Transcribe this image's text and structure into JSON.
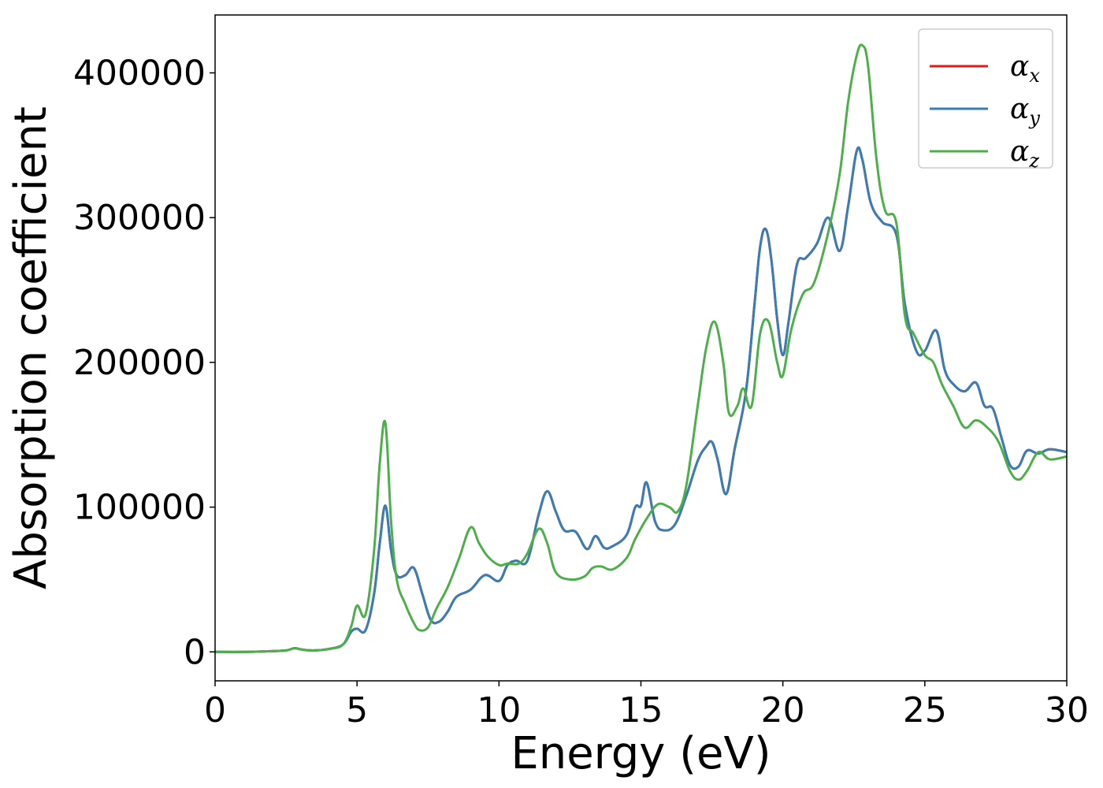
{
  "chart_data": {
    "type": "line",
    "xlabel": "Energy (eV)",
    "ylabel": "Absorption coefficient",
    "xlim": [
      0,
      30
    ],
    "ylim": [
      -20000,
      440000
    ],
    "xticks": [
      0,
      5,
      10,
      15,
      20,
      25,
      30
    ],
    "yticks": [
      0,
      100000,
      200000,
      300000,
      400000
    ],
    "grid": false,
    "legend_position": "top-right",
    "series": [
      {
        "name": "α",
        "subscript": "x",
        "color": "#e41a1c",
        "x": [
          0,
          1,
          2,
          2.5,
          2.8,
          3.1,
          3.5,
          4,
          4.5,
          4.8,
          5,
          5.3,
          5.6,
          5.8,
          6,
          6.2,
          6.4,
          6.7,
          7,
          7.3,
          7.6,
          7.9,
          8.2,
          8.5,
          9,
          9.5,
          10,
          10.3,
          10.6,
          11,
          11.4,
          11.7,
          12,
          12.3,
          12.7,
          13.1,
          13.4,
          13.7,
          14,
          14.5,
          14.8,
          15,
          15.2,
          15.5,
          15.8,
          16.2,
          16.6,
          17,
          17.3,
          17.5,
          17.7,
          18,
          18.3,
          18.7,
          19,
          19.2,
          19.4,
          19.6,
          19.8,
          20,
          20.2,
          20.5,
          20.8,
          21.2,
          21.6,
          22,
          22.3,
          22.6,
          22.8,
          23.1,
          23.5,
          24,
          24.3,
          24.7,
          25,
          25.4,
          25.7,
          26,
          26.4,
          26.8,
          27.1,
          27.4,
          27.7,
          28,
          28.3,
          28.6,
          29,
          29.4,
          30
        ],
        "values": [
          0,
          0,
          500,
          1000,
          2500,
          1500,
          1000,
          2000,
          5000,
          14000,
          16000,
          15000,
          40000,
          75000,
          101000,
          70000,
          53000,
          53000,
          58000,
          40000,
          22000,
          21000,
          28000,
          38000,
          43000,
          53000,
          49000,
          60000,
          63000,
          63000,
          95000,
          111000,
          97000,
          84000,
          83000,
          71000,
          80000,
          72000,
          73000,
          81000,
          100000,
          101000,
          117000,
          90000,
          84000,
          88000,
          108000,
          132000,
          142000,
          145000,
          133000,
          109000,
          140000,
          180000,
          240000,
          280000,
          292000,
          270000,
          230000,
          205000,
          228000,
          268000,
          272000,
          282000,
          300000,
          277000,
          308000,
          346000,
          340000,
          310000,
          297000,
          288000,
          240000,
          208000,
          208000,
          222000,
          195000,
          185000,
          180000,
          186000,
          170000,
          168000,
          148000,
          129000,
          128000,
          139000,
          137000,
          140000,
          138000
        ]
      },
      {
        "name": "α",
        "subscript": "y",
        "color": "#377eb8",
        "x": [
          0,
          1,
          2,
          2.5,
          2.8,
          3.1,
          3.5,
          4,
          4.5,
          4.8,
          5,
          5.3,
          5.6,
          5.8,
          6,
          6.2,
          6.4,
          6.7,
          7,
          7.3,
          7.6,
          7.9,
          8.2,
          8.5,
          9,
          9.5,
          10,
          10.3,
          10.6,
          11,
          11.4,
          11.7,
          12,
          12.3,
          12.7,
          13.1,
          13.4,
          13.7,
          14,
          14.5,
          14.8,
          15,
          15.2,
          15.5,
          15.8,
          16.2,
          16.6,
          17,
          17.3,
          17.5,
          17.7,
          18,
          18.3,
          18.7,
          19,
          19.2,
          19.4,
          19.6,
          19.8,
          20,
          20.2,
          20.5,
          20.8,
          21.2,
          21.6,
          22,
          22.3,
          22.6,
          22.8,
          23.1,
          23.5,
          24,
          24.3,
          24.7,
          25,
          25.4,
          25.7,
          26,
          26.4,
          26.8,
          27.1,
          27.4,
          27.7,
          28,
          28.3,
          28.6,
          29,
          29.4,
          30
        ],
        "values": [
          0,
          0,
          500,
          1000,
          2500,
          1500,
          1000,
          2000,
          5000,
          14000,
          16000,
          15000,
          40000,
          75000,
          101000,
          70000,
          53000,
          53000,
          58000,
          40000,
          22000,
          21000,
          28000,
          38000,
          43000,
          53000,
          49000,
          60000,
          63000,
          63000,
          95000,
          111000,
          97000,
          84000,
          83000,
          71000,
          80000,
          72000,
          73000,
          81000,
          100000,
          101000,
          117000,
          90000,
          84000,
          88000,
          108000,
          132000,
          142000,
          145000,
          133000,
          109000,
          140000,
          180000,
          240000,
          280000,
          292000,
          270000,
          230000,
          205000,
          228000,
          268000,
          272000,
          282000,
          300000,
          277000,
          308000,
          346000,
          340000,
          310000,
          297000,
          288000,
          240000,
          208000,
          208000,
          222000,
          195000,
          185000,
          180000,
          186000,
          170000,
          168000,
          148000,
          129000,
          128000,
          139000,
          137000,
          140000,
          138000
        ]
      },
      {
        "name": "α",
        "subscript": "z",
        "color": "#4daf4a",
        "x": [
          0,
          1,
          2,
          2.5,
          2.8,
          3.1,
          3.5,
          4,
          4.5,
          4.8,
          5,
          5.3,
          5.6,
          5.8,
          6,
          6.2,
          6.4,
          6.7,
          7,
          7.2,
          7.5,
          7.8,
          8.2,
          8.6,
          9,
          9.3,
          9.6,
          10,
          10.3,
          10.7,
          11,
          11.4,
          11.7,
          12,
          12.5,
          13,
          13.3,
          13.6,
          14,
          14.5,
          14.8,
          15.2,
          15.6,
          16,
          16.3,
          16.6,
          17,
          17.3,
          17.6,
          17.9,
          18.1,
          18.4,
          18.6,
          18.9,
          19.2,
          19.5,
          19.8,
          20,
          20.3,
          20.7,
          21.1,
          21.6,
          22,
          22.3,
          22.6,
          22.8,
          23,
          23.3,
          23.6,
          24,
          24.3,
          24.6,
          25,
          25.3,
          25.6,
          26,
          26.4,
          26.8,
          27.2,
          27.6,
          28,
          28.3,
          28.6,
          29,
          29.4,
          30
        ],
        "values": [
          0,
          0,
          500,
          1000,
          2500,
          1500,
          1000,
          2000,
          5000,
          18000,
          32000,
          26000,
          70000,
          130000,
          158000,
          90000,
          50000,
          33000,
          20000,
          15000,
          17000,
          30000,
          45000,
          65000,
          86000,
          75000,
          66000,
          60000,
          61000,
          61000,
          68000,
          85000,
          75000,
          55000,
          50000,
          52000,
          58000,
          59000,
          57000,
          65000,
          78000,
          92000,
          102000,
          100000,
          97000,
          115000,
          170000,
          210000,
          228000,
          200000,
          165000,
          170000,
          182000,
          170000,
          220000,
          228000,
          200000,
          191000,
          223000,
          247000,
          255000,
          290000,
          330000,
          380000,
          412000,
          419000,
          405000,
          340000,
          305000,
          296000,
          232000,
          220000,
          205000,
          200000,
          185000,
          170000,
          155000,
          160000,
          155000,
          145000,
          125000,
          119000,
          125000,
          138000,
          133000,
          135000
        ]
      }
    ]
  }
}
